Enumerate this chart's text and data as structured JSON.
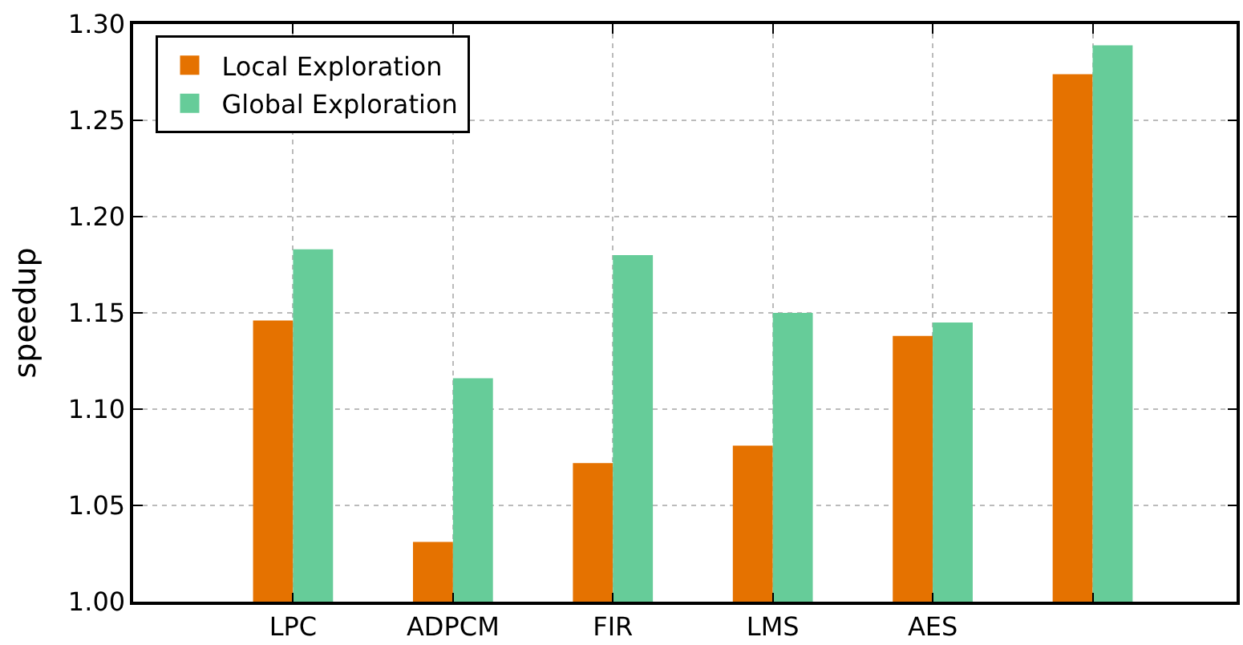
{
  "chart_data": {
    "type": "bar",
    "ylabel": "speedup",
    "categories": [
      "LPC",
      "ADPCM",
      "FIR",
      "LMS",
      "AES",
      null
    ],
    "series": [
      {
        "name": "Local Exploration",
        "color": "#e57200",
        "values": [
          1.146,
          1.031,
          1.072,
          1.081,
          1.138,
          1.274
        ]
      },
      {
        "name": "Global Exploration",
        "color": "#66cc99",
        "values": [
          1.183,
          1.116,
          1.18,
          1.15,
          1.145,
          1.289
        ]
      }
    ],
    "ylim": [
      1.0,
      1.3
    ],
    "yticks": [
      {
        "value": 1.0,
        "label": "1.00"
      },
      {
        "value": 1.05,
        "label": "1.05"
      },
      {
        "value": 1.1,
        "label": "1.10"
      },
      {
        "value": 1.15,
        "label": "1.15"
      },
      {
        "value": 1.2,
        "label": "1.20"
      },
      {
        "value": 1.25,
        "label": "1.25"
      },
      {
        "value": 1.3,
        "label": "1.30"
      }
    ],
    "grid": true,
    "legend": "top left"
  }
}
